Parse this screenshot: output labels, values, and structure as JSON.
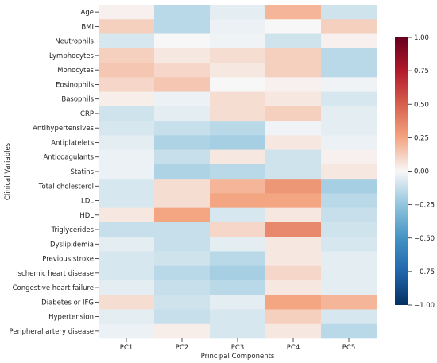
{
  "chart_data": {
    "type": "heatmap",
    "title": "",
    "xlabel": "Principal Components",
    "ylabel": "Clinical Variables",
    "x_categories": [
      "PC1",
      "PC2",
      "PC3",
      "PC4",
      "PC5"
    ],
    "y_categories": [
      "Age",
      "BMI",
      "Neutrophils",
      "Lymphocytes",
      "Monocytes",
      "Eosinophils",
      "Basophils",
      "CRP",
      "Antihypertensives",
      "Antiplatelets",
      "Anticoagulants",
      "Statins",
      "Total cholesterol",
      "LDL",
      "HDL",
      "Triglycerides",
      "Dyslipidemia",
      "Previous stroke",
      "Ischemic heart disease",
      "Congestive heart failure",
      "Diabetes or IFG",
      "Hypertension",
      "Peripheral artery disease"
    ],
    "values": [
      [
        0.02,
        -0.15,
        -0.05,
        0.2,
        -0.1
      ],
      [
        0.12,
        -0.15,
        -0.03,
        0.0,
        0.12
      ],
      [
        -0.08,
        0.0,
        -0.02,
        -0.1,
        0.02
      ],
      [
        0.12,
        0.05,
        0.08,
        0.12,
        -0.15
      ],
      [
        0.15,
        0.1,
        0.05,
        0.12,
        -0.15
      ],
      [
        0.1,
        0.15,
        0.0,
        0.02,
        -0.02
      ],
      [
        0.03,
        -0.03,
        0.08,
        0.05,
        -0.08
      ],
      [
        -0.1,
        -0.05,
        0.08,
        0.12,
        -0.05
      ],
      [
        -0.08,
        -0.12,
        -0.15,
        -0.02,
        -0.05
      ],
      [
        -0.05,
        -0.18,
        -0.2,
        0.05,
        -0.03
      ],
      [
        -0.03,
        -0.12,
        0.05,
        -0.1,
        0.02
      ],
      [
        -0.03,
        -0.18,
        -0.15,
        -0.1,
        0.05
      ],
      [
        -0.08,
        0.08,
        0.2,
        0.3,
        -0.2
      ],
      [
        -0.08,
        0.08,
        0.25,
        0.25,
        -0.15
      ],
      [
        0.05,
        0.25,
        -0.08,
        0.05,
        -0.12
      ],
      [
        -0.12,
        -0.12,
        0.1,
        0.35,
        -0.1
      ],
      [
        -0.05,
        -0.12,
        -0.05,
        0.05,
        -0.08
      ],
      [
        -0.08,
        -0.1,
        -0.15,
        0.05,
        -0.05
      ],
      [
        -0.08,
        -0.15,
        -0.2,
        0.1,
        -0.05
      ],
      [
        -0.05,
        -0.12,
        -0.15,
        0.05,
        -0.05
      ],
      [
        0.08,
        -0.1,
        -0.05,
        0.25,
        0.2
      ],
      [
        -0.05,
        -0.12,
        -0.08,
        0.12,
        -0.08
      ],
      [
        -0.03,
        0.03,
        -0.08,
        0.05,
        -0.15
      ]
    ],
    "colorbar": {
      "min": -1.0,
      "max": 1.0,
      "colormap": "RdBu_r",
      "ticks": [
        "-1.00",
        "-0.75",
        "-0.50",
        "-0.25",
        "0.00",
        "0.25",
        "0.50",
        "0.75",
        "1.00"
      ]
    },
    "grid": false
  }
}
